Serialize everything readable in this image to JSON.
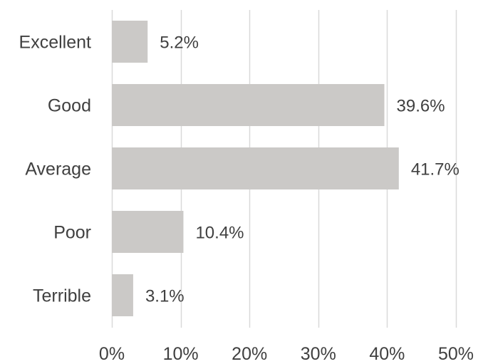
{
  "chart_data": {
    "type": "bar",
    "orientation": "horizontal",
    "categories": [
      "Excellent",
      "Good",
      "Average",
      "Poor",
      "Terrible"
    ],
    "values": [
      5.2,
      39.6,
      41.7,
      10.4,
      3.1
    ],
    "data_labels": [
      "5.2%",
      "39.6%",
      "41.7%",
      "10.4%",
      "3.1%"
    ],
    "x_ticks": [
      0,
      10,
      20,
      30,
      40,
      50
    ],
    "x_tick_labels": [
      "0%",
      "10%",
      "20%",
      "30%",
      "40%",
      "50%"
    ],
    "xlim": [
      0,
      50
    ],
    "title": "",
    "xlabel": "",
    "ylabel": "",
    "grid": "vertical",
    "legend": "none",
    "bar_color": "#cbc9c7",
    "grid_color": "#d9d9d9",
    "text_color": "#404040"
  }
}
